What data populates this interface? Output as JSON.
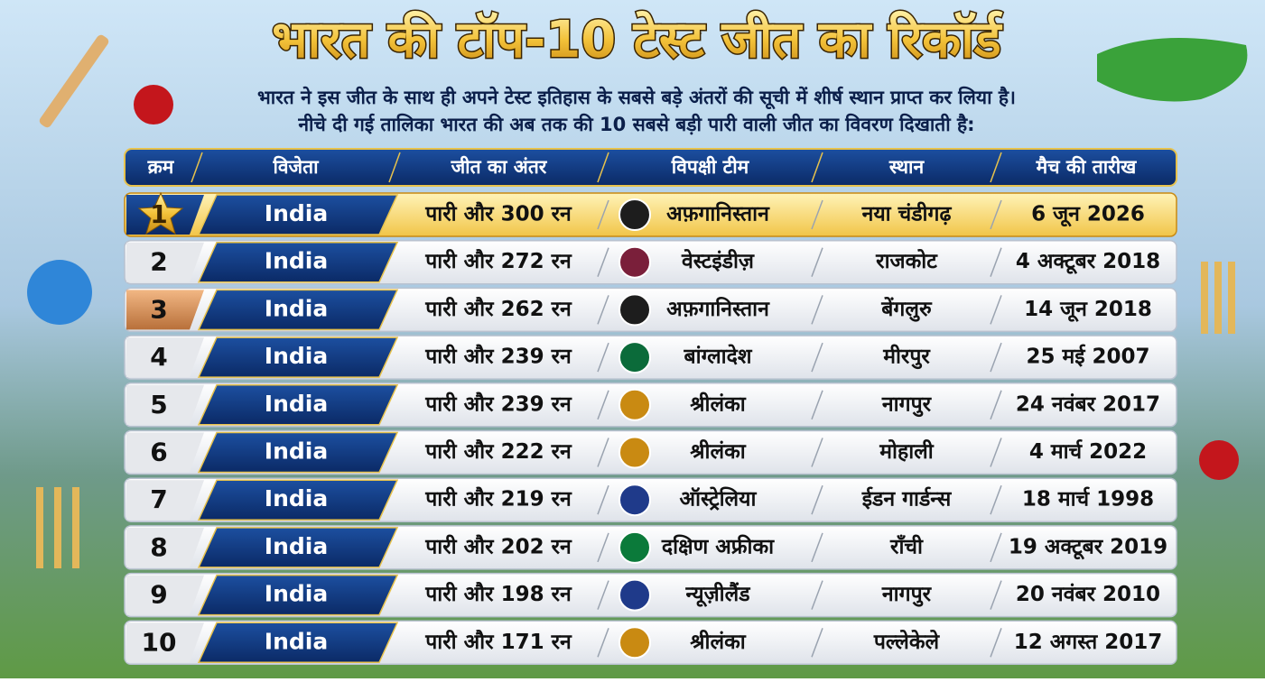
{
  "header": {
    "title": "भारत की टॉप-10 टेस्ट जीत का रिकॉर्ड",
    "subtitle": [
      "भारत ने इस जीत के साथ ही अपने टेस्ट इतिहास के सबसे बड़े अंतरों की सूची में शीर्ष स्थान प्राप्त कर लिया है।",
      "नीचे दी गई तालिका भारत की अब तक की 10 सबसे बड़ी पारी वाली जीत का विवरण दिखाती है:"
    ]
  },
  "table": {
    "columns": [
      "क्रम",
      "विजेता",
      "जीत का अंतर",
      "विपक्षी टीम",
      "स्थान",
      "मैच की तारीख"
    ],
    "rows": [
      [
        "1",
        "India",
        "पारी और 300 रन",
        "अफ़गानिस्तान",
        "नया चंडीगढ़",
        "6 जून 2026"
      ],
      [
        "2",
        "India",
        "पारी और 272 रन",
        "वेस्टइंडीज़",
        "राजकोट",
        "4 अक्टूबर 2018"
      ],
      [
        "3",
        "India",
        "पारी और 262 रन",
        "अफ़गानिस्तान",
        "बेंगलुरु",
        "14 जून 2018"
      ],
      [
        "4",
        "India",
        "पारी और 239 रन",
        "बांग्लादेश",
        "मीरपुर",
        "25 मई 2007"
      ],
      [
        "5",
        "India",
        "पारी और 239 रन",
        "श्रीलंका",
        "नागपुर",
        "24 नवंबर 2017"
      ],
      [
        "6",
        "India",
        "पारी और 222 रन",
        "श्रीलंका",
        "मोहाली",
        "4 मार्च 2022"
      ],
      [
        "7",
        "India",
        "पारी और 219 रन",
        "ऑस्ट्रेलिया",
        "ईडन गार्डन्स",
        "18 मार्च 1998"
      ],
      [
        "8",
        "India",
        "पारी और 202 रन",
        "दक्षिण अफ्रीका",
        "राँची",
        "19 अक्टूबर 2019"
      ],
      [
        "9",
        "India",
        "पारी और 198 रन",
        "न्यूज़ीलैंड",
        "नागपुर",
        "20 नवंबर 2010"
      ],
      [
        "10",
        "India",
        "पारी और 171 रन",
        "श्रीलंका",
        "पल्लेकेले",
        "12 अगस्त 2017"
      ]
    ],
    "flag_colors": [
      "#1d1d1d",
      "#7a1f3a",
      "#1d1d1d",
      "#0b6b3a",
      "#c98a12",
      "#c98a12",
      "#1f3a8a",
      "#0b7a3a",
      "#1f3a8a",
      "#c98a12"
    ]
  }
}
